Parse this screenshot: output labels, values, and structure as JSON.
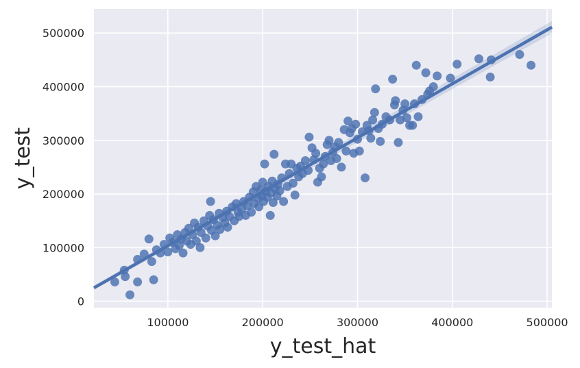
{
  "chart_data": {
    "type": "scatter",
    "title": "",
    "xlabel": "y_test_hat",
    "ylabel": "y_test",
    "xlim": [
      22000,
      505000
    ],
    "ylim": [
      -12000,
      545000
    ],
    "x_ticks": [
      100000,
      200000,
      300000,
      400000,
      500000
    ],
    "y_ticks": [
      0,
      100000,
      200000,
      300000,
      400000,
      500000
    ],
    "x_tick_labels": [
      "100000",
      "200000",
      "300000",
      "400000",
      "500000"
    ],
    "y_tick_labels": [
      "0",
      "100000",
      "200000",
      "300000",
      "400000",
      "500000"
    ],
    "grid": true,
    "legend": "none",
    "colors": {
      "background": "#eaeaf2",
      "grid": "#ffffff",
      "points": "#4c72b0",
      "line": "#4c72b0",
      "ci_band": "#4c72b0"
    },
    "regression_line": {
      "x": [
        22000,
        505000
      ],
      "y": [
        25000,
        511000
      ]
    },
    "points": [
      [
        44000,
        36000
      ],
      [
        54000,
        58000
      ],
      [
        55000,
        46000
      ],
      [
        60000,
        12000
      ],
      [
        68000,
        36000
      ],
      [
        68000,
        78000
      ],
      [
        75000,
        88000
      ],
      [
        80000,
        116000
      ],
      [
        83000,
        74000
      ],
      [
        85000,
        40000
      ],
      [
        88000,
        96000
      ],
      [
        92000,
        90000
      ],
      [
        96000,
        106000
      ],
      [
        100000,
        92000
      ],
      [
        102000,
        118000
      ],
      [
        105000,
        110000
      ],
      [
        108000,
        98000
      ],
      [
        110000,
        124000
      ],
      [
        112000,
        104000
      ],
      [
        114000,
        116000
      ],
      [
        116000,
        90000
      ],
      [
        118000,
        128000
      ],
      [
        120000,
        112000
      ],
      [
        122000,
        136000
      ],
      [
        124000,
        106000
      ],
      [
        126000,
        124000
      ],
      [
        128000,
        146000
      ],
      [
        130000,
        112000
      ],
      [
        132000,
        138000
      ],
      [
        134000,
        100000
      ],
      [
        135000,
        128000
      ],
      [
        138000,
        150000
      ],
      [
        140000,
        118000
      ],
      [
        142000,
        140000
      ],
      [
        144000,
        160000
      ],
      [
        145000,
        186000
      ],
      [
        146000,
        132000
      ],
      [
        148000,
        152000
      ],
      [
        150000,
        122000
      ],
      [
        152000,
        142000
      ],
      [
        154000,
        164000
      ],
      [
        155000,
        134000
      ],
      [
        158000,
        156000
      ],
      [
        160000,
        146000
      ],
      [
        162000,
        168000
      ],
      [
        163000,
        138000
      ],
      [
        165000,
        158000
      ],
      [
        168000,
        176000
      ],
      [
        170000,
        150000
      ],
      [
        172000,
        182000
      ],
      [
        174000,
        166000
      ],
      [
        175000,
        158000
      ],
      [
        178000,
        172000
      ],
      [
        180000,
        186000
      ],
      [
        182000,
        160000
      ],
      [
        184000,
        178000
      ],
      [
        186000,
        194000
      ],
      [
        188000,
        166000
      ],
      [
        190000,
        204000
      ],
      [
        191000,
        182000
      ],
      [
        193000,
        214000
      ],
      [
        195000,
        192000
      ],
      [
        196000,
        176000
      ],
      [
        198000,
        208000
      ],
      [
        199000,
        196000
      ],
      [
        200000,
        222000
      ],
      [
        201000,
        186000
      ],
      [
        202000,
        256000
      ],
      [
        203000,
        204000
      ],
      [
        205000,
        194000
      ],
      [
        206000,
        214000
      ],
      [
        208000,
        160000
      ],
      [
        209000,
        202000
      ],
      [
        210000,
        224000
      ],
      [
        211000,
        184000
      ],
      [
        212000,
        274000
      ],
      [
        213000,
        210000
      ],
      [
        215000,
        196000
      ],
      [
        216000,
        218000
      ],
      [
        218000,
        206000
      ],
      [
        220000,
        230000
      ],
      [
        222000,
        186000
      ],
      [
        224000,
        256000
      ],
      [
        226000,
        214000
      ],
      [
        228000,
        238000
      ],
      [
        230000,
        256000
      ],
      [
        232000,
        220000
      ],
      [
        234000,
        198000
      ],
      [
        236000,
        248000
      ],
      [
        238000,
        232000
      ],
      [
        240000,
        252000
      ],
      [
        242000,
        238000
      ],
      [
        245000,
        262000
      ],
      [
        248000,
        244000
      ],
      [
        249000,
        306000
      ],
      [
        252000,
        286000
      ],
      [
        254000,
        264000
      ],
      [
        256000,
        276000
      ],
      [
        258000,
        222000
      ],
      [
        260000,
        248000
      ],
      [
        262000,
        232000
      ],
      [
        264000,
        256000
      ],
      [
        266000,
        270000
      ],
      [
        268000,
        292000
      ],
      [
        270000,
        300000
      ],
      [
        272000,
        262000
      ],
      [
        274000,
        278000
      ],
      [
        276000,
        288000
      ],
      [
        278000,
        266000
      ],
      [
        280000,
        296000
      ],
      [
        283000,
        250000
      ],
      [
        286000,
        320000
      ],
      [
        288000,
        280000
      ],
      [
        290000,
        336000
      ],
      [
        292000,
        314000
      ],
      [
        294000,
        322000
      ],
      [
        296000,
        276000
      ],
      [
        298000,
        330000
      ],
      [
        300000,
        302000
      ],
      [
        302000,
        280000
      ],
      [
        305000,
        316000
      ],
      [
        308000,
        230000
      ],
      [
        310000,
        328000
      ],
      [
        312000,
        318000
      ],
      [
        314000,
        304000
      ],
      [
        316000,
        338000
      ],
      [
        318000,
        352000
      ],
      [
        319000,
        396000
      ],
      [
        322000,
        322000
      ],
      [
        324000,
        298000
      ],
      [
        326000,
        330000
      ],
      [
        330000,
        344000
      ],
      [
        334000,
        338000
      ],
      [
        337000,
        414000
      ],
      [
        339000,
        366000
      ],
      [
        340000,
        374000
      ],
      [
        343000,
        296000
      ],
      [
        345000,
        338000
      ],
      [
        348000,
        356000
      ],
      [
        350000,
        368000
      ],
      [
        352000,
        342000
      ],
      [
        355000,
        328000
      ],
      [
        358000,
        328000
      ],
      [
        360000,
        368000
      ],
      [
        362000,
        440000
      ],
      [
        364000,
        344000
      ],
      [
        368000,
        376000
      ],
      [
        372000,
        426000
      ],
      [
        374000,
        386000
      ],
      [
        376000,
        392000
      ],
      [
        380000,
        400000
      ],
      [
        384000,
        420000
      ],
      [
        398000,
        416000
      ],
      [
        405000,
        442000
      ],
      [
        428000,
        452000
      ],
      [
        440000,
        418000
      ],
      [
        441000,
        450000
      ],
      [
        471000,
        460000
      ],
      [
        483000,
        440000
      ]
    ]
  }
}
